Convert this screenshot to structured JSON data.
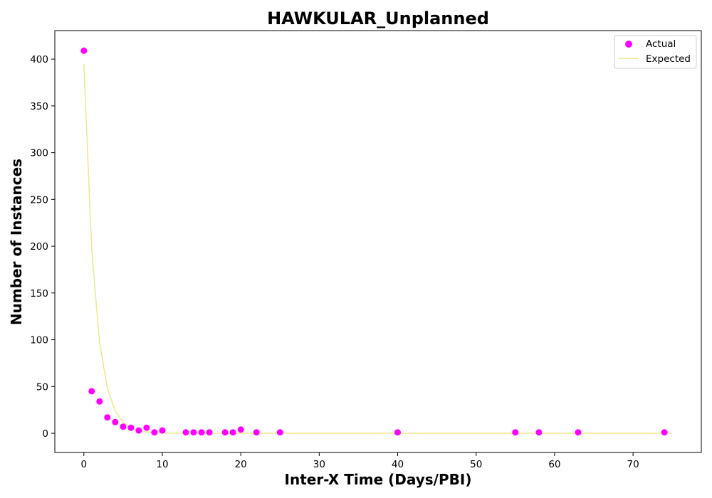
{
  "chart_data": {
    "type": "scatter",
    "title": "HAWKULAR_Unplanned",
    "xlabel": "Inter-X Time (Days/PBI)",
    "ylabel": "Number of Instances",
    "xlim": [
      -3.7,
      78.7
    ],
    "ylim": [
      -20.5,
      430.5
    ],
    "xticks": [
      0,
      10,
      20,
      30,
      40,
      50,
      60,
      70
    ],
    "yticks": [
      0,
      50,
      100,
      150,
      200,
      250,
      300,
      350,
      400
    ],
    "grid": false,
    "legend": {
      "position": "top-right",
      "entries": [
        "Actual",
        "Expected"
      ]
    },
    "colors": {
      "actual": "#ff00ff",
      "expected": "#f0e68c"
    },
    "series": [
      {
        "name": "Actual",
        "kind": "scatter",
        "x": [
          0,
          1,
          2,
          3,
          4,
          5,
          6,
          7,
          8,
          9,
          10,
          13,
          14,
          15,
          16,
          18,
          19,
          20,
          22,
          25,
          40,
          55,
          58,
          63,
          74
        ],
        "y": [
          409,
          45,
          34,
          17,
          12,
          7,
          6,
          3,
          6,
          1,
          3,
          1,
          1,
          1,
          1,
          1,
          1,
          4,
          1,
          1,
          1,
          1,
          1,
          1,
          1
        ]
      },
      {
        "name": "Expected",
        "kind": "line",
        "x": [
          0,
          1,
          2,
          3,
          4,
          5,
          6,
          7,
          8,
          9,
          10,
          11,
          12,
          15,
          20,
          25,
          30,
          40,
          50,
          60,
          70,
          75
        ],
        "y": [
          395,
          196,
          97,
          48,
          24,
          12,
          6,
          3,
          1.5,
          0.7,
          0.4,
          0.2,
          0.1,
          0,
          0,
          0,
          0,
          0,
          0,
          0,
          0,
          0
        ]
      }
    ]
  }
}
